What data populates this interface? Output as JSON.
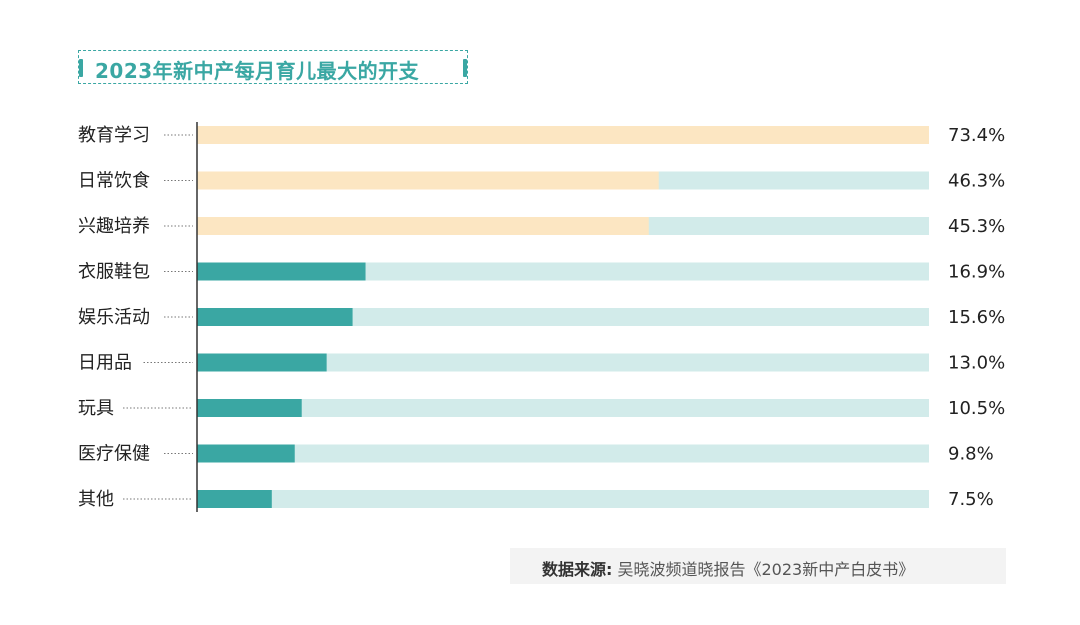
{
  "title": "2023年新中产每月育儿最大的开支",
  "source": {
    "label": "数据来源:",
    "text": "吴晓波频道晓报告《2023新中产白皮书》"
  },
  "colors": {
    "accent": "#3aa7a3",
    "highlight_bar": "#fce6c2",
    "track": "#d2ebea",
    "normal_bar": "#3aa7a3"
  },
  "chart_data": {
    "type": "bar",
    "orientation": "horizontal",
    "title": "2023年新中产每月育儿最大的开支",
    "categories": [
      "教育学习",
      "日常饮食",
      "兴趣培养",
      "衣服鞋包",
      "娱乐活动",
      "日用品",
      "玩具",
      "医疗保健",
      "其他"
    ],
    "values": [
      73.4,
      46.3,
      45.3,
      16.9,
      15.6,
      13.0,
      10.5,
      9.8,
      7.5
    ],
    "value_labels": [
      "73.4%",
      "46.3%",
      "45.3%",
      "16.9%",
      "15.6%",
      "13.0%",
      "10.5%",
      "9.8%",
      "7.5%"
    ],
    "highlighted_top": 3,
    "xlim": [
      0,
      73.4
    ],
    "unit": "%"
  }
}
